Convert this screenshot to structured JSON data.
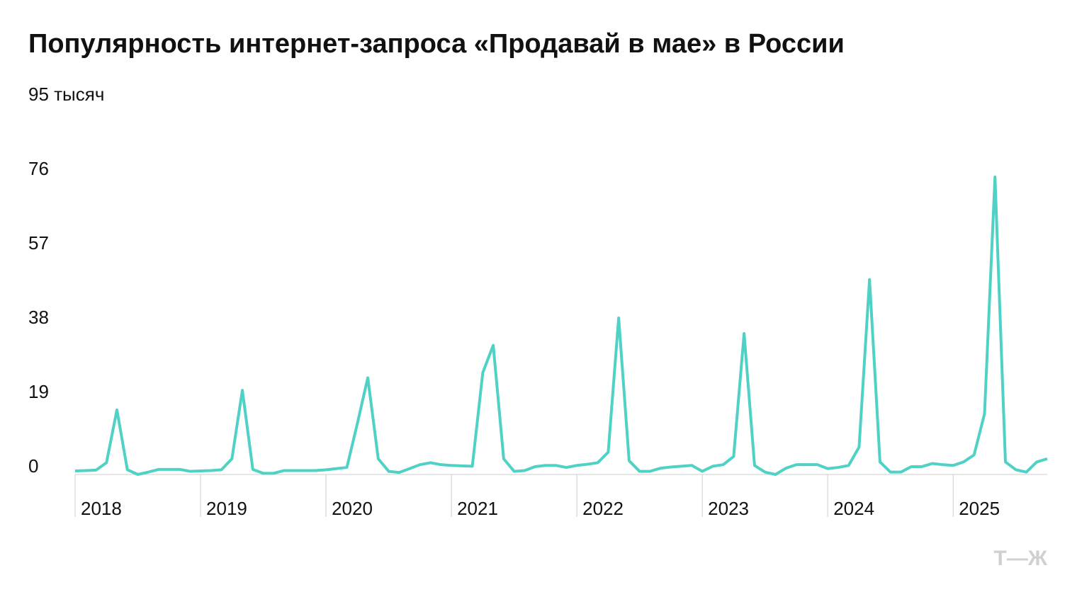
{
  "chart_data": {
    "type": "line",
    "title": "Популярность интернет-запроса «Продавай в мае» в России",
    "logo": "Т—Ж",
    "categories": [
      "2018",
      null,
      null,
      null,
      null,
      null,
      null,
      null,
      null,
      null,
      null,
      null,
      "2019",
      null,
      null,
      null,
      null,
      null,
      null,
      null,
      null,
      null,
      null,
      null,
      "2020",
      null,
      null,
      null,
      null,
      null,
      null,
      null,
      null,
      null,
      null,
      null,
      "2021",
      null,
      null,
      null,
      null,
      null,
      null,
      null,
      null,
      null,
      null,
      null,
      "2022",
      null,
      null,
      null,
      null,
      null,
      null,
      null,
      null,
      null,
      null,
      null,
      "2023",
      null,
      null,
      null,
      null,
      null,
      null,
      null,
      null,
      null,
      null,
      null,
      "2024",
      null,
      null,
      null,
      null,
      null,
      null,
      null,
      null,
      null,
      null,
      null,
      "2025",
      null,
      null,
      null,
      null,
      null,
      null,
      null,
      null,
      null
    ],
    "values": [
      0.9,
      1,
      1.1,
      3,
      16.5,
      1.2,
      0,
      0.6,
      1.3,
      1.3,
      1.3,
      0.8,
      0.9,
      1,
      1.2,
      4,
      21.5,
      1.3,
      0.3,
      0.3,
      1,
      1,
      1,
      1,
      1.2,
      1.5,
      1.8,
      13,
      24.7,
      4,
      0.8,
      0.5,
      1.5,
      2.5,
      3,
      2.5,
      2.3,
      2.2,
      2.1,
      26,
      33,
      4,
      0.8,
      1,
      2,
      2.3,
      2.3,
      1.8,
      2.3,
      2.6,
      3,
      5.7,
      40,
      3.5,
      0.8,
      0.8,
      1.6,
      1.9,
      2.1,
      2.3,
      0.8,
      2.1,
      2.5,
      4.6,
      36,
      2.3,
      0.6,
      0,
      1.6,
      2.5,
      2.5,
      2.5,
      1.5,
      1.8,
      2.3,
      7,
      49.8,
      3.2,
      0.6,
      0.6,
      2,
      2,
      2.8,
      2.5,
      2.3,
      3.2,
      5,
      15.5,
      76,
      3.2,
      1.2,
      0.6,
      3.2,
      4
    ],
    "color": "#4fd1c5",
    "ylim": [
      0,
      95
    ],
    "yticks": [
      0,
      19,
      38,
      57,
      76,
      {
        "value": 95,
        "label": "95 тысяч"
      }
    ]
  }
}
